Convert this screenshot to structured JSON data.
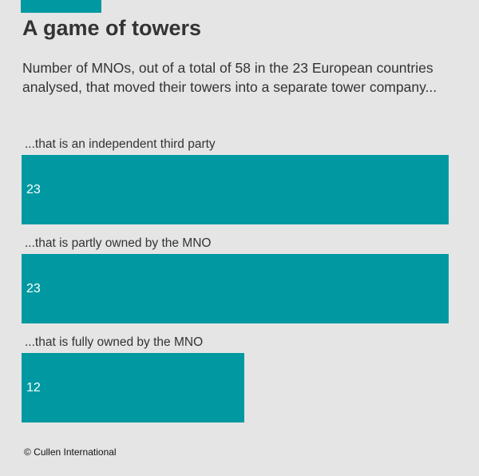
{
  "chart_data": {
    "type": "bar",
    "orientation": "horizontal",
    "title": "A game of towers",
    "subtitle": "Number of MNOs, out of a total of 58 in the 23 European countries analysed, that moved their towers into a separate tower company...",
    "categories": [
      "...that is an independent third party",
      "...that is partly owned by the MNO",
      "...that is fully owned by the MNO"
    ],
    "values": [
      23,
      23,
      12
    ],
    "xlim": [
      0,
      23
    ],
    "color": "#0099a1",
    "source": "© Cullen International"
  }
}
